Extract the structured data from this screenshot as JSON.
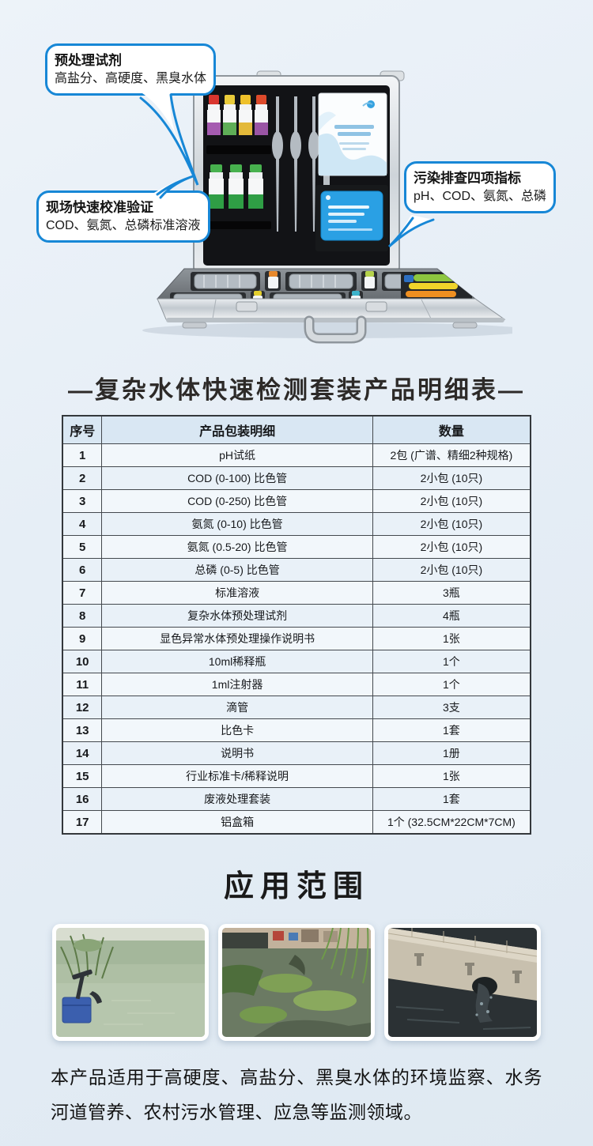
{
  "callouts": {
    "pretreat": {
      "title": "预处理试剂",
      "subtitle": "高盐分、高硬度、黑臭水体"
    },
    "calibration": {
      "title": "现场快速校准验证",
      "subtitle": "COD、氨氮、总磷标准溶液"
    },
    "indicators": {
      "title": "污染排查四项指标",
      "subtitle": "pH、COD、氨氮、总磷"
    }
  },
  "hero_illustrations": {
    "case": "test-kit-aluminum-case",
    "photos": [
      "lake-monitoring-photo",
      "polluted-river-photo",
      "sewage-outfall-photo"
    ]
  },
  "detail_table": {
    "title": "—复杂水体快速检测套装产品明细表—",
    "headers": [
      "序号",
      "产品包装明细",
      "数量"
    ],
    "rows": [
      [
        "1",
        "pH试纸",
        "2包 (广谱、精细2种规格)"
      ],
      [
        "2",
        "COD (0-100) 比色管",
        "2小包 (10只)"
      ],
      [
        "3",
        "COD (0-250) 比色管",
        "2小包 (10只)"
      ],
      [
        "4",
        "氨氮 (0-10) 比色管",
        "2小包 (10只)"
      ],
      [
        "5",
        "氨氮 (0.5-20) 比色管",
        "2小包 (10只)"
      ],
      [
        "6",
        "总磷 (0-5) 比色管",
        "2小包 (10只)"
      ],
      [
        "7",
        "标准溶液",
        "3瓶"
      ],
      [
        "8",
        "复杂水体预处理试剂",
        "4瓶"
      ],
      [
        "9",
        "显色异常水体预处理操作说明书",
        "1张"
      ],
      [
        "10",
        "10ml稀释瓶",
        "1个"
      ],
      [
        "11",
        "1ml注射器",
        "1个"
      ],
      [
        "12",
        "滴管",
        "3支"
      ],
      [
        "13",
        "比色卡",
        "1套"
      ],
      [
        "14",
        "说明书",
        "1册"
      ],
      [
        "15",
        "行业标准卡/稀释说明",
        "1张"
      ],
      [
        "16",
        "废液处理套装",
        "1套"
      ],
      [
        "17",
        "铝盒箱",
        "1个 (32.5CM*22CM*7CM)"
      ]
    ]
  },
  "application": {
    "title": "应用范围",
    "description": "本产品适用于高硬度、高盐分、黑臭水体的环境监察、水务河道管养、农村污水管理、应急等监测领域。"
  },
  "colors": {
    "callout_border": "#1787d6",
    "table_header_bg": "#d9e7f3",
    "row_odd_bg": "#f2f7fb",
    "row_even_bg": "#e9f1f8",
    "page_bg": "#e6eef6",
    "blue_card": "#2aa0e4"
  }
}
